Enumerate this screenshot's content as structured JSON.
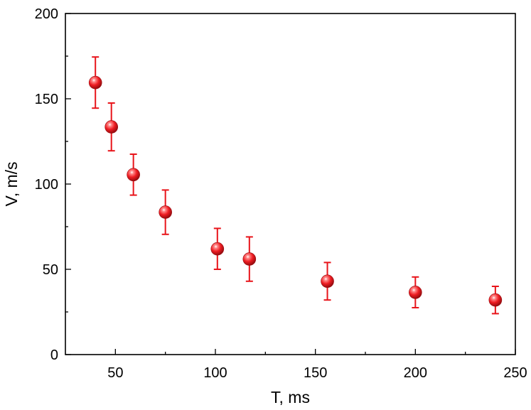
{
  "chart_data": {
    "type": "scatter",
    "xlabel": "T, ms",
    "ylabel": "V, m/s",
    "xlim": [
      25,
      250
    ],
    "ylim": [
      0,
      200
    ],
    "x_ticks": [
      50,
      100,
      150,
      200,
      250
    ],
    "x_ticks_labels": [
      "50",
      "100",
      "150",
      "200",
      "250"
    ],
    "x_minor_ticks": [
      75,
      125,
      175,
      225
    ],
    "y_ticks": [
      0,
      50,
      100,
      150,
      200
    ],
    "y_ticks_labels": [
      "0",
      "50",
      "100",
      "150",
      "200"
    ],
    "y_minor_ticks": [
      25,
      75,
      125,
      175
    ],
    "grid": false,
    "marker_color": "#e8141a",
    "series": [
      {
        "x": [
          40,
          48,
          59,
          75,
          101,
          117,
          156,
          200,
          240
        ],
        "y": [
          159.5,
          133.5,
          105.5,
          83.5,
          62,
          56,
          43,
          36.5,
          32
        ],
        "yerr_low": [
          15,
          14,
          12,
          13,
          12,
          13,
          11,
          9,
          8
        ],
        "yerr_high": [
          15,
          14,
          12,
          13,
          12,
          13,
          11,
          9,
          8
        ]
      }
    ]
  }
}
